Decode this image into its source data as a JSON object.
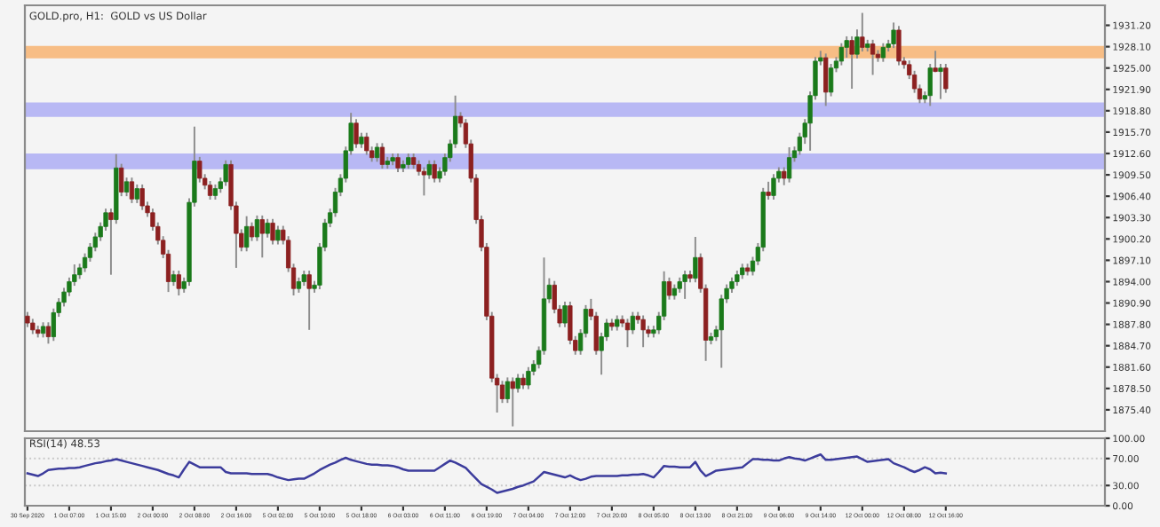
{
  "chart_data": [
    {
      "type": "candlestick",
      "title": "GOLD.pro, H1:  GOLD vs US Dollar",
      "tick_labels": "y",
      "grid": false,
      "categories": [
        null,
        null,
        null,
        null,
        null,
        null,
        null,
        null,
        null,
        null,
        null,
        null,
        null,
        null,
        null,
        null,
        null,
        null,
        null,
        null,
        null,
        null,
        null,
        null,
        null,
        null,
        null,
        null,
        null,
        null,
        null,
        null,
        null,
        null,
        null,
        null,
        null,
        null,
        null,
        null,
        null,
        null,
        null,
        null,
        null,
        null,
        null,
        null,
        null,
        null,
        null,
        null,
        null,
        null,
        null,
        null,
        null,
        null,
        null,
        null,
        null,
        null,
        null,
        null,
        null,
        null,
        null,
        null,
        null,
        null,
        null,
        null,
        null,
        null,
        null,
        null,
        null,
        null,
        null,
        null,
        null,
        null,
        null,
        null,
        null,
        null,
        null,
        null,
        null,
        null,
        null,
        null,
        null,
        null,
        null,
        null,
        null,
        null,
        null,
        null,
        null,
        null,
        null,
        null,
        null,
        null,
        null,
        null,
        null,
        null,
        null,
        null,
        null,
        null,
        null,
        null,
        null,
        null,
        null,
        null,
        null,
        null,
        null,
        null,
        null,
        null,
        null,
        null,
        null,
        null,
        null,
        null,
        null,
        null,
        null,
        null,
        null,
        null,
        null,
        null,
        null,
        null,
        null,
        null,
        null,
        null,
        null,
        null,
        null,
        null,
        null,
        null,
        null,
        null,
        null,
        null,
        null,
        null,
        null,
        null,
        null,
        null,
        null,
        null,
        null,
        null,
        null,
        null,
        null,
        null,
        null,
        null,
        null,
        null,
        null,
        null,
        null,
        null,
        null,
        null,
        null,
        null,
        null,
        null,
        null,
        null,
        null,
        null,
        null,
        null,
        null,
        null,
        null,
        null,
        null,
        null,
        null,
        null,
        null,
        null,
        null,
        null,
        null,
        null,
        null,
        null,
        null
      ],
      "ohlc": [
        [
          1889.0,
          1889.6,
          1887.4,
          1888.0
        ],
        [
          1888.0,
          1888.6,
          1886.4,
          1887.0
        ],
        [
          1887.0,
          1887.6,
          1885.9,
          1886.5
        ],
        [
          1886.5,
          1888.1,
          1885.9,
          1887.5
        ],
        [
          1887.5,
          1888.1,
          1885.0,
          1886.0
        ],
        [
          1886.0,
          1890.1,
          1885.4,
          1889.5
        ],
        [
          1889.5,
          1891.6,
          1888.9,
          1891.0
        ],
        [
          1891.0,
          1893.1,
          1890.4,
          1892.5
        ],
        [
          1892.5,
          1894.6,
          1891.9,
          1894.0
        ],
        [
          1894.0,
          1896.5,
          1893.4,
          1895.0
        ],
        [
          1895.0,
          1896.6,
          1894.4,
          1896.0
        ],
        [
          1896.0,
          1898.1,
          1895.4,
          1897.5
        ],
        [
          1897.5,
          1899.6,
          1896.9,
          1899.0
        ],
        [
          1899.0,
          1901.1,
          1898.4,
          1900.5
        ],
        [
          1900.5,
          1902.6,
          1899.9,
          1902.0
        ],
        [
          1902.0,
          1904.6,
          1901.4,
          1904.0
        ],
        [
          1904.0,
          1904.6,
          1895.0,
          1903.0
        ],
        [
          1903.0,
          1912.5,
          1902.4,
          1910.5
        ],
        [
          1910.5,
          1911.1,
          1906.4,
          1907.0
        ],
        [
          1907.0,
          1909.1,
          1906.4,
          1908.5
        ],
        [
          1908.5,
          1909.1,
          1905.4,
          1906.0
        ],
        [
          1906.0,
          1908.1,
          1905.4,
          1907.5
        ],
        [
          1907.5,
          1908.1,
          1904.4,
          1905.0
        ],
        [
          1905.0,
          1905.6,
          1903.4,
          1904.0
        ],
        [
          1904.0,
          1904.6,
          1901.4,
          1902.0
        ],
        [
          1902.0,
          1902.6,
          1899.4,
          1900.0
        ],
        [
          1900.0,
          1900.6,
          1897.4,
          1898.0
        ],
        [
          1898.0,
          1898.6,
          1892.5,
          1894.0
        ],
        [
          1894.0,
          1895.6,
          1893.4,
          1895.0
        ],
        [
          1895.0,
          1895.6,
          1892.0,
          1893.0
        ],
        [
          1893.0,
          1894.6,
          1892.4,
          1894.0
        ],
        [
          1894.0,
          1906.1,
          1893.4,
          1905.5
        ],
        [
          1905.5,
          1916.5,
          1904.9,
          1911.5
        ],
        [
          1911.5,
          1912.1,
          1908.4,
          1909.0
        ],
        [
          1909.0,
          1909.6,
          1907.4,
          1908.0
        ],
        [
          1908.0,
          1908.6,
          1905.9,
          1906.5
        ],
        [
          1906.5,
          1908.1,
          1905.9,
          1907.5
        ],
        [
          1907.5,
          1909.1,
          1906.9,
          1908.5
        ],
        [
          1908.5,
          1911.6,
          1907.9,
          1911.0
        ],
        [
          1911.0,
          1911.6,
          1904.4,
          1905.0
        ],
        [
          1905.0,
          1905.6,
          1896.0,
          1901.0
        ],
        [
          1901.0,
          1901.6,
          1898.4,
          1899.0
        ],
        [
          1899.0,
          1903.5,
          1898.4,
          1902.0
        ],
        [
          1902.0,
          1902.6,
          1899.9,
          1900.5
        ],
        [
          1900.5,
          1903.6,
          1899.9,
          1903.0
        ],
        [
          1903.0,
          1903.6,
          1897.5,
          1901.0
        ],
        [
          1901.0,
          1903.1,
          1900.4,
          1902.5
        ],
        [
          1902.5,
          1903.1,
          1899.4,
          1900.0
        ],
        [
          1900.0,
          1902.1,
          1899.4,
          1901.5
        ],
        [
          1901.5,
          1902.1,
          1899.4,
          1900.0
        ],
        [
          1900.0,
          1900.6,
          1895.4,
          1896.0
        ],
        [
          1896.0,
          1896.6,
          1892.0,
          1893.0
        ],
        [
          1893.0,
          1894.6,
          1892.4,
          1894.0
        ],
        [
          1894.0,
          1895.6,
          1893.4,
          1895.0
        ],
        [
          1895.0,
          1895.6,
          1887.0,
          1893.0
        ],
        [
          1893.0,
          1894.1,
          1892.4,
          1893.5
        ],
        [
          1893.5,
          1899.6,
          1892.9,
          1899.0
        ],
        [
          1899.0,
          1903.1,
          1898.4,
          1902.5
        ],
        [
          1902.5,
          1904.6,
          1901.9,
          1904.0
        ],
        [
          1904.0,
          1907.6,
          1903.4,
          1907.0
        ],
        [
          1907.0,
          1909.6,
          1906.4,
          1909.0
        ],
        [
          1909.0,
          1913.6,
          1908.4,
          1913.0
        ],
        [
          1913.0,
          1918.5,
          1912.4,
          1917.0
        ],
        [
          1917.0,
          1917.6,
          1913.4,
          1914.0
        ],
        [
          1914.0,
          1915.6,
          1913.4,
          1915.0
        ],
        [
          1915.0,
          1915.6,
          1912.4,
          1913.0
        ],
        [
          1913.0,
          1913.6,
          1911.4,
          1912.0
        ],
        [
          1912.0,
          1914.1,
          1911.4,
          1913.5
        ],
        [
          1913.5,
          1914.1,
          1910.4,
          1911.0
        ],
        [
          1911.0,
          1912.1,
          1910.4,
          1911.5
        ],
        [
          1911.5,
          1912.6,
          1910.9,
          1912.0
        ],
        [
          1912.0,
          1912.6,
          1909.9,
          1910.5
        ],
        [
          1910.5,
          1911.6,
          1909.9,
          1911.0
        ],
        [
          1911.0,
          1912.6,
          1910.4,
          1912.0
        ],
        [
          1912.0,
          1912.6,
          1910.4,
          1911.0
        ],
        [
          1911.0,
          1911.6,
          1909.4,
          1910.0
        ],
        [
          1910.0,
          1910.6,
          1906.5,
          1909.5
        ],
        [
          1909.5,
          1911.6,
          1908.9,
          1911.0
        ],
        [
          1911.0,
          1911.6,
          1908.4,
          1909.0
        ],
        [
          1909.0,
          1910.6,
          1908.4,
          1910.0
        ],
        [
          1910.0,
          1912.6,
          1909.4,
          1912.0
        ],
        [
          1912.0,
          1914.6,
          1911.4,
          1914.0
        ],
        [
          1914.0,
          1921.0,
          1913.4,
          1918.0
        ],
        [
          1918.0,
          1918.6,
          1916.4,
          1917.0
        ],
        [
          1917.0,
          1917.6,
          1913.4,
          1914.0
        ],
        [
          1914.0,
          1914.6,
          1908.4,
          1909.0
        ],
        [
          1909.0,
          1909.6,
          1902.4,
          1903.0
        ],
        [
          1903.0,
          1903.6,
          1898.4,
          1899.0
        ],
        [
          1899.0,
          1899.6,
          1888.4,
          1889.0
        ],
        [
          1889.0,
          1889.6,
          1879.4,
          1880.0
        ],
        [
          1880.0,
          1880.6,
          1875.0,
          1879.0
        ],
        [
          1879.0,
          1879.6,
          1876.4,
          1877.0
        ],
        [
          1877.0,
          1880.1,
          1876.4,
          1879.5
        ],
        [
          1879.5,
          1880.1,
          1873.0,
          1878.5
        ],
        [
          1878.5,
          1880.6,
          1877.9,
          1880.0
        ],
        [
          1880.0,
          1880.6,
          1878.4,
          1879.0
        ],
        [
          1879.0,
          1881.6,
          1878.4,
          1881.0
        ],
        [
          1881.0,
          1882.6,
          1880.4,
          1882.0
        ],
        [
          1882.0,
          1884.6,
          1881.4,
          1884.0
        ],
        [
          1884.0,
          1897.5,
          1883.4,
          1891.5
        ],
        [
          1891.5,
          1894.5,
          1890.9,
          1893.5
        ],
        [
          1893.5,
          1894.1,
          1889.4,
          1890.0
        ],
        [
          1890.0,
          1890.6,
          1887.4,
          1888.0
        ],
        [
          1888.0,
          1891.1,
          1887.4,
          1890.5
        ],
        [
          1890.5,
          1891.1,
          1884.9,
          1885.5
        ],
        [
          1885.5,
          1886.1,
          1883.4,
          1884.0
        ],
        [
          1884.0,
          1887.1,
          1883.4,
          1886.5
        ],
        [
          1886.5,
          1890.6,
          1885.9,
          1890.0
        ],
        [
          1890.0,
          1891.5,
          1888.4,
          1889.0
        ],
        [
          1889.0,
          1889.6,
          1883.4,
          1884.0
        ],
        [
          1884.0,
          1886.6,
          1880.5,
          1886.0
        ],
        [
          1886.0,
          1888.6,
          1885.4,
          1888.0
        ],
        [
          1888.0,
          1888.6,
          1886.9,
          1887.5
        ],
        [
          1887.5,
          1889.1,
          1886.9,
          1888.5
        ],
        [
          1888.5,
          1889.1,
          1887.4,
          1888.0
        ],
        [
          1888.0,
          1888.6,
          1884.5,
          1887.0
        ],
        [
          1887.0,
          1889.6,
          1886.4,
          1889.0
        ],
        [
          1889.0,
          1889.6,
          1887.9,
          1888.5
        ],
        [
          1888.5,
          1889.1,
          1884.5,
          1887.0
        ],
        [
          1887.0,
          1887.6,
          1885.9,
          1886.5
        ],
        [
          1886.5,
          1887.6,
          1885.9,
          1887.0
        ],
        [
          1887.0,
          1889.6,
          1886.4,
          1889.0
        ],
        [
          1889.0,
          1895.5,
          1888.4,
          1894.0
        ],
        [
          1894.0,
          1894.6,
          1891.4,
          1892.0
        ],
        [
          1892.0,
          1893.6,
          1891.4,
          1893.0
        ],
        [
          1893.0,
          1894.6,
          1892.4,
          1894.0
        ],
        [
          1894.0,
          1895.6,
          1891.5,
          1895.0
        ],
        [
          1895.0,
          1895.6,
          1893.9,
          1894.5
        ],
        [
          1894.5,
          1900.5,
          1893.9,
          1897.5
        ],
        [
          1897.5,
          1898.1,
          1892.4,
          1893.0
        ],
        [
          1893.0,
          1893.6,
          1882.5,
          1885.5
        ],
        [
          1885.5,
          1886.6,
          1884.9,
          1886.0
        ],
        [
          1886.0,
          1887.6,
          1885.4,
          1887.0
        ],
        [
          1887.0,
          1892.1,
          1881.5,
          1891.5
        ],
        [
          1891.5,
          1893.6,
          1890.9,
          1893.0
        ],
        [
          1893.0,
          1894.6,
          1892.4,
          1894.0
        ],
        [
          1894.0,
          1895.6,
          1893.4,
          1895.0
        ],
        [
          1895.0,
          1896.6,
          1894.4,
          1896.0
        ],
        [
          1896.0,
          1896.6,
          1894.9,
          1895.5
        ],
        [
          1895.5,
          1897.6,
          1894.9,
          1897.0
        ],
        [
          1897.0,
          1899.6,
          1896.4,
          1899.0
        ],
        [
          1899.0,
          1907.6,
          1898.4,
          1907.0
        ],
        [
          1907.0,
          1908.5,
          1905.9,
          1906.5
        ],
        [
          1906.5,
          1909.6,
          1905.9,
          1909.0
        ],
        [
          1909.0,
          1910.6,
          1908.4,
          1910.0
        ],
        [
          1910.0,
          1910.6,
          1908.0,
          1909.0
        ],
        [
          1909.0,
          1913.5,
          1908.4,
          1912.0
        ],
        [
          1912.0,
          1913.6,
          1911.4,
          1913.0
        ],
        [
          1913.0,
          1915.6,
          1912.4,
          1915.0
        ],
        [
          1915.0,
          1917.6,
          1914.0,
          1917.0
        ],
        [
          1917.0,
          1921.6,
          1913.0,
          1921.0
        ],
        [
          1921.0,
          1926.6,
          1920.4,
          1926.0
        ],
        [
          1926.0,
          1927.5,
          1925.4,
          1926.5
        ],
        [
          1926.5,
          1927.1,
          1919.5,
          1921.5
        ],
        [
          1921.5,
          1925.6,
          1920.9,
          1925.0
        ],
        [
          1925.0,
          1926.6,
          1924.4,
          1926.0
        ],
        [
          1926.0,
          1928.6,
          1925.4,
          1928.0
        ],
        [
          1928.0,
          1929.6,
          1926.5,
          1929.0
        ],
        [
          1929.0,
          1929.6,
          1922.0,
          1927.0
        ],
        [
          1927.0,
          1930.6,
          1926.4,
          1929.5
        ],
        [
          1929.5,
          1933.0,
          1927.4,
          1928.0
        ],
        [
          1928.0,
          1929.1,
          1927.4,
          1928.5
        ],
        [
          1928.5,
          1929.1,
          1924.0,
          1927.0
        ],
        [
          1927.0,
          1927.6,
          1925.9,
          1926.5
        ],
        [
          1926.5,
          1928.6,
          1925.9,
          1928.0
        ],
        [
          1928.0,
          1929.1,
          1927.4,
          1928.5
        ],
        [
          1928.5,
          1931.6,
          1927.9,
          1930.5
        ],
        [
          1930.5,
          1931.1,
          1925.4,
          1926.0
        ],
        [
          1926.0,
          1926.6,
          1924.9,
          1925.5
        ],
        [
          1925.5,
          1926.1,
          1923.4,
          1924.0
        ],
        [
          1924.0,
          1924.6,
          1921.4,
          1922.0
        ],
        [
          1922.0,
          1922.6,
          1919.9,
          1920.5
        ],
        [
          1920.5,
          1921.6,
          1919.9,
          1921.0
        ],
        [
          1921.0,
          1925.6,
          1919.5,
          1925.0
        ],
        [
          1925.0,
          1927.5,
          1924.4,
          1924.5
        ],
        [
          1924.5,
          1925.6,
          1920.5,
          1925.0
        ],
        [
          1925.0,
          1925.6,
          1921.4,
          1922.0
        ],
        null,
        null,
        null,
        null,
        null,
        null,
        null,
        null,
        null,
        null,
        null,
        null,
        null,
        null,
        null,
        null,
        null,
        null,
        null,
        null,
        null,
        null,
        null,
        null,
        null,
        null,
        null,
        null,
        null,
        null
      ],
      "ylim": [
        1872.3,
        1934.1
      ],
      "yticks": [
        {
          "value": 1875.4,
          "label": "1875.40"
        },
        {
          "value": 1878.5,
          "label": "1878.50"
        },
        {
          "value": 1881.6,
          "label": "1881.60"
        },
        {
          "value": 1884.7,
          "label": "1884.70"
        },
        {
          "value": 1887.8,
          "label": "1887.80"
        },
        {
          "value": 1890.9,
          "label": "1890.90"
        },
        {
          "value": 1894.0,
          "label": "1894.00"
        },
        {
          "value": 1897.1,
          "label": "1897.10"
        },
        {
          "value": 1900.2,
          "label": "1900.20"
        },
        {
          "value": 1903.3,
          "label": "1903.30"
        },
        {
          "value": 1906.4,
          "label": "1906.40"
        },
        {
          "value": 1909.5,
          "label": "1909.50"
        },
        {
          "value": 1912.6,
          "label": "1912.60"
        },
        {
          "value": 1915.7,
          "label": "1915.70"
        },
        {
          "value": 1918.8,
          "label": "1918.80"
        },
        {
          "value": 1921.9,
          "label": "1921.90"
        },
        {
          "value": 1925.0,
          "label": "1925.00"
        },
        {
          "value": 1928.1,
          "label": "1928.10"
        },
        {
          "value": 1931.2,
          "label": "1931.20"
        }
      ],
      "bands": [
        {
          "axis": "y",
          "from": 1910.3,
          "to": 1912.6,
          "color": "#b8b8f4"
        },
        {
          "axis": "y",
          "from": 1917.9,
          "to": 1920.0,
          "color": "#b8b8f4"
        },
        {
          "axis": "y",
          "from": 1926.4,
          "to": 1928.2,
          "color": "#f7bd85"
        }
      ]
    },
    {
      "type": "line",
      "title": "RSI(14) 48.53",
      "grid": false,
      "categories": [
        "30 Sep 2020",
        null,
        null,
        null,
        null,
        null,
        null,
        null,
        "1 Oct 07:00",
        null,
        null,
        null,
        null,
        null,
        null,
        null,
        "1 Oct 15:00",
        null,
        null,
        null,
        null,
        null,
        null,
        null,
        "2 Oct 00:00",
        null,
        null,
        null,
        null,
        null,
        null,
        null,
        "2 Oct 08:00",
        null,
        null,
        null,
        null,
        null,
        null,
        null,
        "2 Oct 16:00",
        null,
        null,
        null,
        null,
        null,
        null,
        null,
        "5 Oct 02:00",
        null,
        null,
        null,
        null,
        null,
        null,
        null,
        "5 Oct 10:00",
        null,
        null,
        null,
        null,
        null,
        null,
        null,
        "5 Oct 18:00",
        null,
        null,
        null,
        null,
        null,
        null,
        null,
        "6 Oct 03:00",
        null,
        null,
        null,
        null,
        null,
        null,
        null,
        "6 Oct 11:00",
        null,
        null,
        null,
        null,
        null,
        null,
        null,
        "6 Oct 19:00",
        null,
        null,
        null,
        null,
        null,
        null,
        null,
        "7 Oct 04:00",
        null,
        null,
        null,
        null,
        null,
        null,
        null,
        "7 Oct 12:00",
        null,
        null,
        null,
        null,
        null,
        null,
        null,
        "7 Oct 20:00",
        null,
        null,
        null,
        null,
        null,
        null,
        null,
        "8 Oct 05:00",
        null,
        null,
        null,
        null,
        null,
        null,
        null,
        "8 Oct 13:00",
        null,
        null,
        null,
        null,
        null,
        null,
        null,
        "8 Oct 21:00",
        null,
        null,
        null,
        null,
        null,
        null,
        null,
        "9 Oct 06:00",
        null,
        null,
        null,
        null,
        null,
        null,
        null,
        "9 Oct 14:00",
        null,
        null,
        null,
        null,
        null,
        null,
        null,
        "12 Oct 00:00",
        null,
        null,
        null,
        null,
        null,
        null,
        null,
        "12 Oct 08:00",
        null,
        null,
        null,
        null,
        null,
        null,
        null,
        "12 Oct 16:00",
        null,
        null,
        null,
        null,
        null,
        null,
        null,
        null,
        null,
        null,
        null,
        null,
        null,
        null,
        null,
        null,
        null,
        null,
        null,
        null,
        null,
        null,
        null,
        null,
        null,
        null,
        null,
        null,
        null,
        null
      ],
      "series": [
        {
          "color": "#3c3c9c",
          "values": [
            48,
            46,
            44,
            48,
            53,
            54,
            55,
            55,
            56,
            56,
            57,
            59,
            61,
            63,
            64,
            66,
            67,
            69,
            67,
            65,
            63,
            61,
            59,
            57,
            55,
            53,
            50,
            47,
            45,
            42,
            54,
            65,
            61,
            57,
            57,
            57,
            57,
            57,
            50,
            48,
            48,
            48,
            48,
            47,
            47,
            47,
            47,
            45,
            42,
            40,
            38,
            39,
            40,
            40,
            44,
            48,
            53,
            57,
            61,
            64,
            68,
            71,
            68,
            66,
            64,
            62,
            61,
            61,
            60,
            60,
            59,
            57,
            54,
            52,
            52,
            52,
            52,
            52,
            52,
            57,
            62,
            67,
            64,
            60,
            56,
            48,
            40,
            32,
            28,
            24,
            19,
            21,
            23,
            25,
            28,
            30,
            33,
            36,
            43,
            50,
            48,
            46,
            44,
            42,
            45,
            41,
            38,
            40,
            43,
            44,
            44,
            44,
            44,
            44,
            45,
            45,
            46,
            46,
            47,
            45,
            42,
            50,
            59,
            58,
            58,
            57,
            57,
            57,
            65,
            52,
            44,
            48,
            52,
            53,
            54,
            55,
            56,
            57,
            63,
            69,
            69,
            68,
            68,
            67,
            67,
            70,
            72,
            70,
            69,
            67,
            70,
            73,
            76,
            68,
            68,
            69,
            70,
            71,
            72,
            73,
            69,
            65,
            66,
            67,
            68,
            69,
            63,
            60,
            57,
            53,
            50,
            53,
            57,
            54,
            48,
            49,
            48,
            null,
            null,
            null,
            null,
            null,
            null,
            null,
            null,
            null,
            null,
            null,
            null,
            null,
            null,
            null,
            null,
            null,
            null,
            null,
            null,
            null,
            null,
            null,
            null,
            null,
            null,
            null,
            null,
            null,
            null
          ]
        }
      ],
      "ylim": [
        0,
        100
      ],
      "yticks": [
        {
          "value": 0,
          "label": "0.00"
        },
        {
          "value": 30,
          "label": "30.00"
        },
        {
          "value": 70,
          "label": "70.00"
        },
        {
          "value": 100,
          "label": "100.00"
        }
      ],
      "ref_lines": [
        {
          "axis": "y",
          "value": 70,
          "color": "#c8c8c8",
          "line_style": "dotted"
        },
        {
          "axis": "y",
          "value": 30,
          "color": "#c8c8c8",
          "line_style": "dotted"
        }
      ]
    }
  ]
}
